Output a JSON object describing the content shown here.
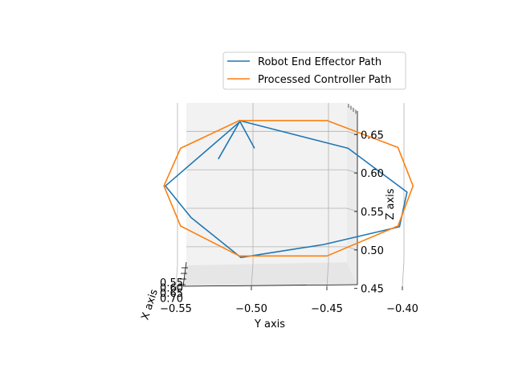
{
  "chart_data": {
    "type": "line",
    "projection": "3d",
    "xlabel": "X axis",
    "ylabel": "Y axis",
    "zlabel": "Z axis",
    "grid": true,
    "legend_placement": "upper-right",
    "y_ticks": [
      "−0.55",
      "−0.50",
      "−0.45",
      "−0.40"
    ],
    "y_tick_values": [
      -0.55,
      -0.5,
      -0.45,
      -0.4
    ],
    "z_ticks": [
      "0.45",
      "0.50",
      "0.55",
      "0.60",
      "0.65"
    ],
    "z_tick_values": [
      0.45,
      0.5,
      0.55,
      0.6,
      0.65
    ],
    "x_ticks": [
      "0.55",
      "0.60",
      "0.65",
      "0.70"
    ],
    "ylim": [
      -0.59,
      -0.38
    ],
    "zlim": [
      0.45,
      0.68
    ],
    "series": [
      {
        "name": "Robot End Effector Path",
        "color": "#1f77b4",
        "y": [
          -0.523,
          -0.509,
          -0.558,
          -0.541,
          -0.508,
          -0.453,
          -0.403,
          -0.398,
          -0.437,
          -0.509,
          -0.499
        ],
        "z": [
          0.614,
          0.662,
          0.579,
          0.538,
          0.486,
          0.503,
          0.526,
          0.571,
          0.628,
          0.664,
          0.628
        ]
      },
      {
        "name": "Processed Controller Path",
        "color": "#ff7f0e",
        "y": [
          -0.509,
          -0.451,
          -0.404,
          -0.394,
          -0.404,
          -0.451,
          -0.509,
          -0.548,
          -0.559,
          -0.548,
          -0.509
        ],
        "z": [
          0.664,
          0.664,
          0.629,
          0.579,
          0.527,
          0.488,
          0.488,
          0.527,
          0.579,
          0.628,
          0.664
        ]
      }
    ]
  }
}
